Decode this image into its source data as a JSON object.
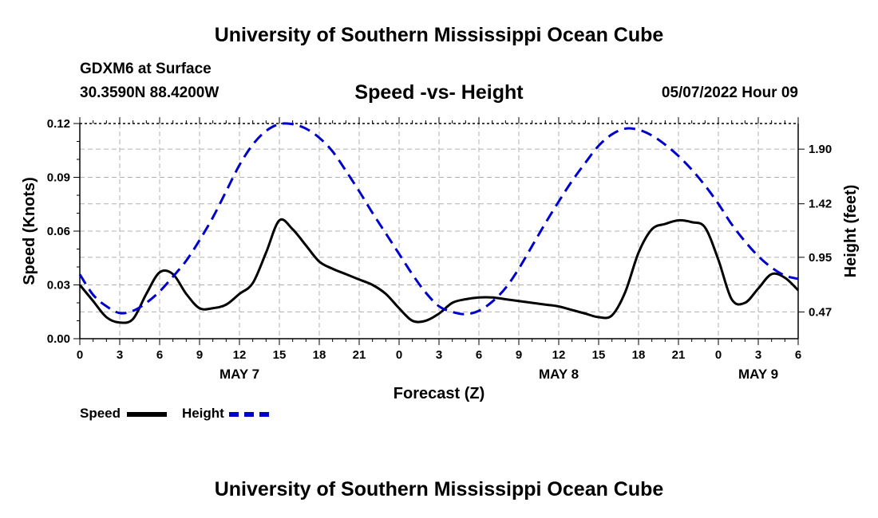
{
  "header": {
    "title": "University of Southern Mississippi Ocean Cube",
    "station": "GDXM6 at Surface",
    "coords": "30.3590N  88.4200W",
    "date": "05/07/2022 Hour 09",
    "footer_title": "University of Southern Mississippi Ocean Cube"
  },
  "legend": {
    "speed_label": "Speed",
    "height_label": "Height"
  },
  "colors": {
    "speed": "#000000",
    "height": "#0000cc",
    "grid": "#b0b0b0"
  },
  "chart_data": {
    "type": "line",
    "title": "Speed -vs- Height",
    "xlabel": "Forecast (Z)",
    "ylabel": "Speed (Knots)",
    "y2label": "Height (feet)",
    "xlim": [
      0,
      54
    ],
    "ylim": [
      0,
      0.12
    ],
    "y2lim": [
      0.235,
      2.125
    ],
    "x_ticks": [
      0,
      3,
      6,
      9,
      12,
      15,
      18,
      21,
      24,
      27,
      30,
      33,
      36,
      39,
      42,
      45,
      48,
      51,
      54
    ],
    "x_tick_labels": [
      "0",
      "3",
      "6",
      "9",
      "12",
      "15",
      "18",
      "21",
      "0",
      "3",
      "6",
      "9",
      "12",
      "15",
      "18",
      "21",
      "0",
      "3",
      "6"
    ],
    "y_ticks": [
      0.0,
      0.03,
      0.06,
      0.09,
      0.12
    ],
    "y_tick_labels": [
      "0.00",
      "0.03",
      "0.06",
      "0.09",
      "0.12"
    ],
    "y2_ticks": [
      0.47,
      0.95,
      1.42,
      1.9
    ],
    "y2_tick_labels": [
      "0.47",
      "0.95",
      "1.42",
      "1.90"
    ],
    "day_labels": [
      {
        "x": 12,
        "label": "MAY 7"
      },
      {
        "x": 36,
        "label": "MAY 8"
      },
      {
        "x": 51,
        "label": "MAY 9"
      }
    ],
    "grid": true,
    "series": [
      {
        "name": "Speed",
        "axis": "left",
        "x": [
          0,
          1,
          2,
          3,
          4,
          5,
          6,
          7,
          8,
          9,
          10,
          11,
          12,
          13,
          14,
          15,
          16,
          17,
          18,
          19,
          20,
          21,
          22,
          23,
          24,
          25,
          26,
          27,
          28,
          29,
          30,
          31,
          32,
          33,
          34,
          35,
          36,
          37,
          38,
          39,
          40,
          41,
          42,
          43,
          44,
          45,
          46,
          47,
          48,
          49,
          50,
          51,
          52,
          53,
          54
        ],
        "values": [
          0.03,
          0.021,
          0.012,
          0.009,
          0.011,
          0.025,
          0.037,
          0.036,
          0.025,
          0.017,
          0.017,
          0.019,
          0.025,
          0.031,
          0.048,
          0.066,
          0.061,
          0.052,
          0.043,
          0.039,
          0.036,
          0.033,
          0.03,
          0.025,
          0.017,
          0.01,
          0.01,
          0.014,
          0.02,
          0.022,
          0.023,
          0.023,
          0.022,
          0.021,
          0.02,
          0.019,
          0.018,
          0.016,
          0.014,
          0.012,
          0.013,
          0.026,
          0.048,
          0.061,
          0.064,
          0.066,
          0.065,
          0.062,
          0.044,
          0.022,
          0.02,
          0.028,
          0.036,
          0.034,
          0.027
        ]
      },
      {
        "name": "Height",
        "axis": "right",
        "x": [
          0,
          1,
          2,
          3,
          4,
          5,
          6,
          7,
          8,
          9,
          10,
          11,
          12,
          13,
          14,
          15,
          16,
          17,
          18,
          19,
          20,
          21,
          22,
          23,
          24,
          25,
          26,
          27,
          28,
          29,
          30,
          31,
          32,
          33,
          34,
          35,
          36,
          37,
          38,
          39,
          40,
          41,
          42,
          43,
          44,
          45,
          46,
          47,
          48,
          49,
          50,
          51,
          52,
          53,
          54
        ],
        "values": [
          0.8,
          0.62,
          0.52,
          0.46,
          0.48,
          0.55,
          0.65,
          0.78,
          0.92,
          1.1,
          1.3,
          1.53,
          1.76,
          1.94,
          2.06,
          2.12,
          2.12,
          2.08,
          2.0,
          1.88,
          1.71,
          1.53,
          1.34,
          1.16,
          0.98,
          0.8,
          0.64,
          0.52,
          0.47,
          0.45,
          0.48,
          0.56,
          0.68,
          0.85,
          1.05,
          1.25,
          1.44,
          1.62,
          1.78,
          1.93,
          2.03,
          2.08,
          2.07,
          2.02,
          1.94,
          1.84,
          1.72,
          1.58,
          1.42,
          1.24,
          1.09,
          0.96,
          0.86,
          0.79,
          0.76
        ]
      }
    ]
  }
}
